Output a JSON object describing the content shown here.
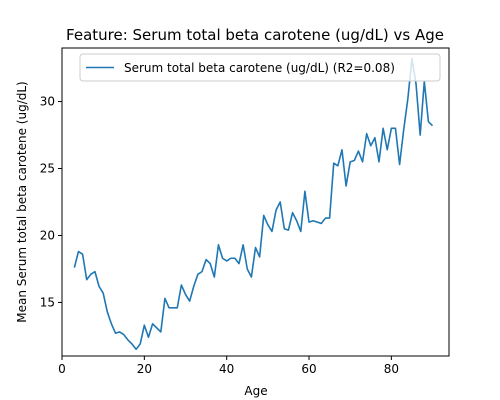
{
  "chart_data": {
    "type": "line",
    "title": "Feature: Serum total beta carotene (ug/dL) vs Age",
    "xlabel": "Age",
    "ylabel": "Mean Serum total beta carotene (ug/dL)",
    "xlim": [
      0,
      94
    ],
    "ylim": [
      11,
      34
    ],
    "xticks": [
      0,
      20,
      40,
      60,
      80
    ],
    "yticks": [
      15,
      20,
      25,
      30
    ],
    "grid": false,
    "legend_position": "top-right",
    "series": [
      {
        "name": "Serum total beta carotene (ug/dL) (R2=0.08)",
        "color": "#1f77b4",
        "x": [
          3,
          4,
          5,
          6,
          7,
          8,
          9,
          10,
          11,
          12,
          13,
          14,
          15,
          16,
          17,
          18,
          19,
          20,
          21,
          22,
          23,
          24,
          25,
          26,
          27,
          28,
          29,
          30,
          31,
          32,
          33,
          34,
          35,
          36,
          37,
          38,
          39,
          40,
          41,
          42,
          43,
          44,
          45,
          46,
          47,
          48,
          49,
          50,
          51,
          52,
          53,
          54,
          55,
          56,
          57,
          58,
          59,
          60,
          61,
          62,
          63,
          64,
          65,
          66,
          67,
          68,
          69,
          70,
          71,
          72,
          73,
          74,
          75,
          76,
          77,
          78,
          79,
          80,
          81,
          82,
          83,
          84,
          85,
          86,
          87,
          88,
          89,
          90
        ],
        "y": [
          17.6,
          18.8,
          18.6,
          16.7,
          17.1,
          17.3,
          16.2,
          15.7,
          14.3,
          13.4,
          12.7,
          12.8,
          12.6,
          12.2,
          11.9,
          11.5,
          11.9,
          13.3,
          12.4,
          13.4,
          13.1,
          12.8,
          15.3,
          14.6,
          14.6,
          14.6,
          16.3,
          15.6,
          15.1,
          16.2,
          17.1,
          17.3,
          18.2,
          17.9,
          16.9,
          19.3,
          18.3,
          18.1,
          18.3,
          18.3,
          17.9,
          19.3,
          17.5,
          16.9,
          19.1,
          18.4,
          21.5,
          20.8,
          20.3,
          21.9,
          22.5,
          20.5,
          20.4,
          21.7,
          21.1,
          20.3,
          23.3,
          21.0,
          21.1,
          21.0,
          20.9,
          21.3,
          21.3,
          25.4,
          25.2,
          26.4,
          23.7,
          25.5,
          25.6,
          26.3,
          25.5,
          27.6,
          26.7,
          27.3,
          25.5,
          28.0,
          26.4,
          28.0,
          28.0,
          25.3,
          27.9,
          30.2,
          33.2,
          31.3,
          27.5,
          31.5,
          28.5,
          28.2
        ]
      }
    ]
  }
}
